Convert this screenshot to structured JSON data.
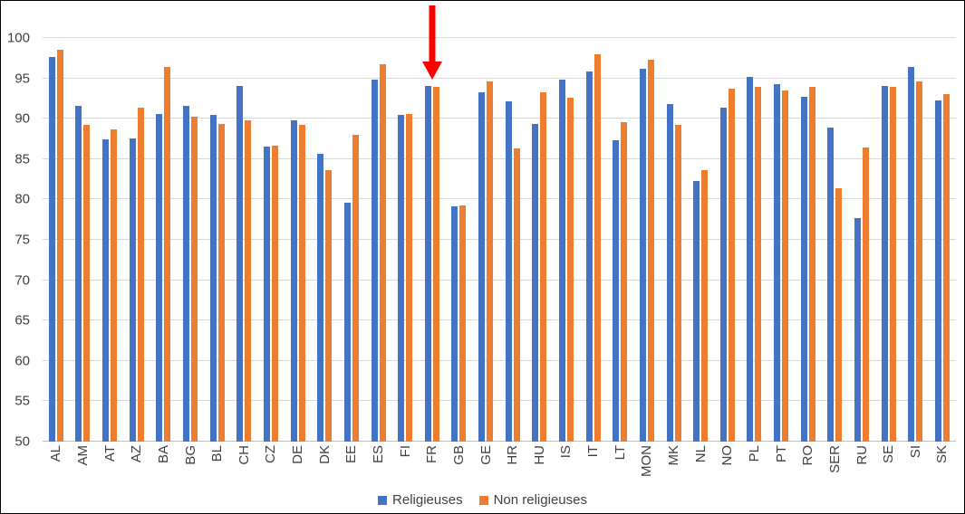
{
  "chart_data": {
    "type": "bar",
    "title": "",
    "xlabel": "",
    "ylabel": "",
    "categories": [
      "AL",
      "AM",
      "AT",
      "AZ",
      "BA",
      "BG",
      "BL",
      "CH",
      "CZ",
      "DE",
      "DK",
      "EE",
      "ES",
      "FI",
      "FR",
      "GB",
      "GE",
      "HR",
      "HU",
      "IS",
      "IT",
      "LT",
      "MON",
      "MK",
      "NL",
      "NO",
      "PL",
      "PT",
      "RO",
      "SER",
      "RU",
      "SE",
      "SI",
      "SK"
    ],
    "series": [
      {
        "name": "Religieuses",
        "color": "#4472C4",
        "values": [
          97.7,
          91.6,
          87.5,
          87.6,
          90.6,
          91.6,
          90.5,
          94.1,
          86.6,
          89.8,
          85.7,
          79.6,
          94.8,
          90.5,
          94.1,
          79.2,
          93.3,
          92.2,
          89.3,
          94.8,
          95.8,
          87.3,
          96.2,
          91.8,
          82.3,
          91.4,
          95.2,
          94.3,
          92.7,
          88.9,
          77.7,
          94.1,
          96.4,
          92.3
        ]
      },
      {
        "name": "Non religieuses",
        "color": "#ED7D31",
        "values": [
          98.5,
          89.2,
          88.7,
          91.4,
          96.4,
          90.2,
          89.4,
          89.8,
          86.7,
          89.2,
          83.6,
          88.0,
          96.8,
          90.6,
          93.9,
          79.3,
          94.6,
          86.3,
          93.3,
          92.6,
          98.0,
          89.6,
          97.3,
          89.2,
          83.6,
          93.7,
          94.0,
          93.5,
          93.9,
          81.4,
          86.4,
          94.0,
          94.6,
          93.0
        ]
      }
    ],
    "ylim": [
      50,
      100
    ],
    "yticks": [
      50,
      55,
      60,
      65,
      70,
      75,
      80,
      85,
      90,
      95,
      100
    ],
    "grid": true,
    "legend_position": "bottom",
    "annotation": {
      "type": "down-arrow",
      "target": "FR",
      "color": "#FF0000"
    }
  }
}
